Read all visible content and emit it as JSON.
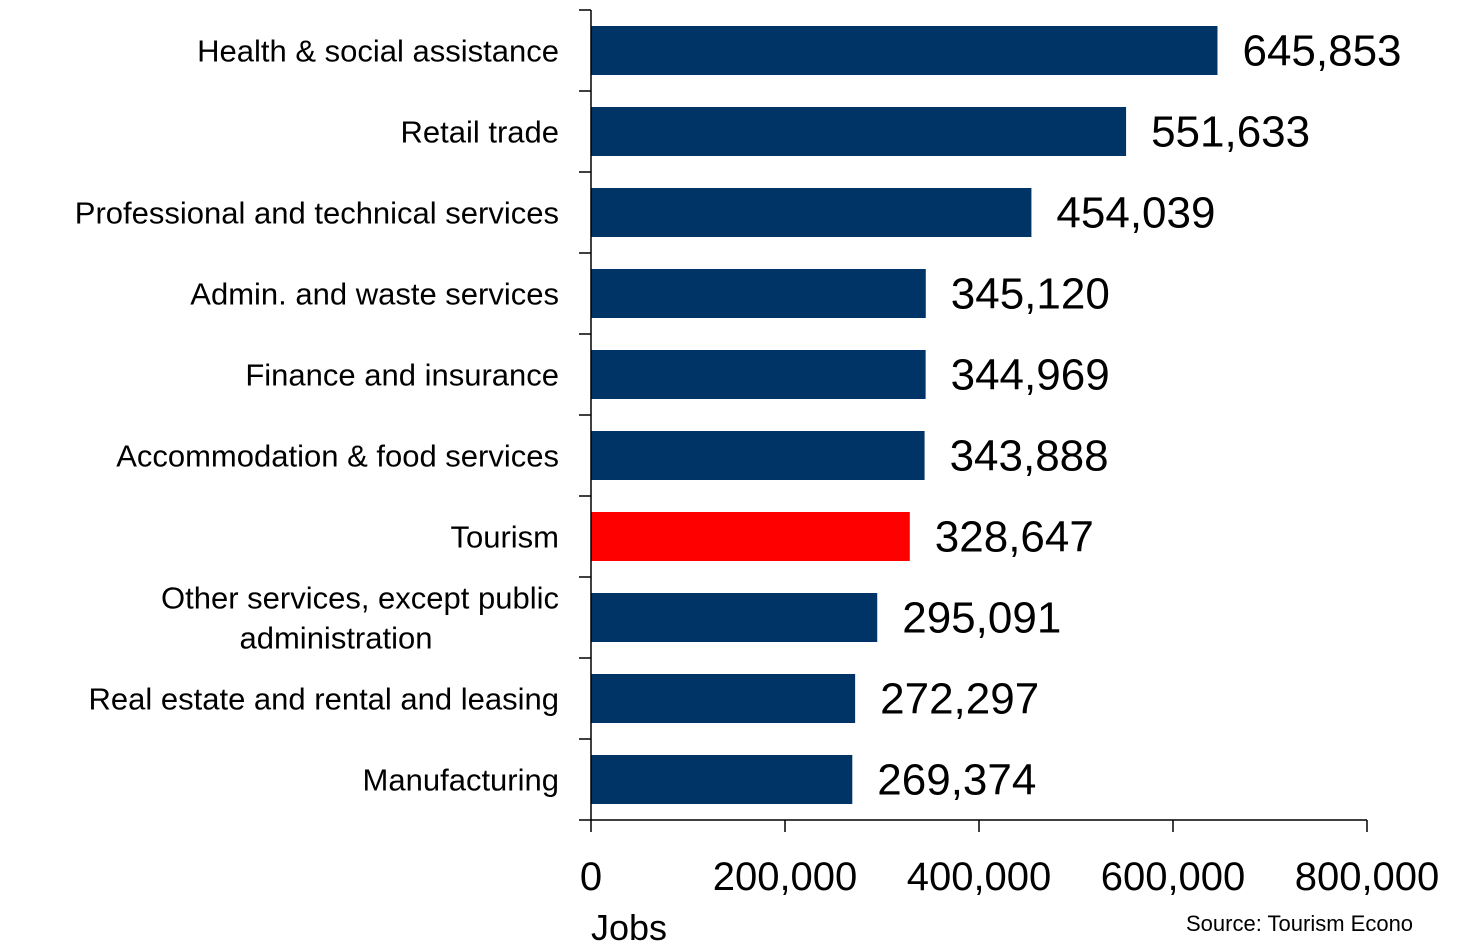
{
  "chart_data": {
    "type": "bar",
    "orientation": "horizontal",
    "categories": [
      [
        "Health & social assistance"
      ],
      [
        "Retail trade"
      ],
      [
        "Professional and technical services"
      ],
      [
        "Admin. and waste services"
      ],
      [
        "Finance and insurance"
      ],
      [
        "Accommodation & food services"
      ],
      [
        "Tourism"
      ],
      [
        "Other services, except public",
        "administration"
      ],
      [
        "Real estate and rental and leasing"
      ],
      [
        "Manufacturing"
      ]
    ],
    "values": [
      645853,
      551633,
      454039,
      345120,
      344969,
      343888,
      328647,
      295091,
      272297,
      269374
    ],
    "value_labels": [
      "645,853",
      "551,633",
      "454,039",
      "345,120",
      "344,969",
      "343,888",
      "328,647",
      "295,091",
      "272,297",
      "269,374"
    ],
    "highlight_index": 6,
    "colors": {
      "default": "#003366",
      "highlight": "#ff0000"
    },
    "xlim": [
      0,
      800000
    ],
    "xticks": [
      0,
      200000,
      400000,
      600000,
      800000
    ],
    "xtick_labels": [
      "0",
      "200,000",
      "400,000",
      "600,000",
      "800,000"
    ],
    "xlabel": "Jobs",
    "source": "Source: Tourism Econo",
    "grid": false
  }
}
